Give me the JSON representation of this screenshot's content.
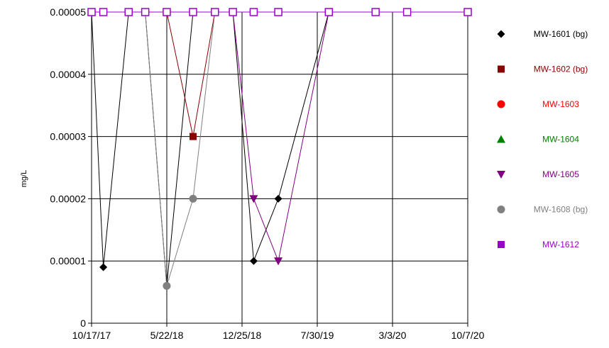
{
  "chart_data": {
    "type": "line",
    "title": "",
    "ylabel": "mg/L",
    "xlabel": "",
    "x_ticks": [
      "10/17/17",
      "5/22/18",
      "12/25/18",
      "7/30/19",
      "3/3/20",
      "10/7/20"
    ],
    "y_ticks": [
      "0",
      "0.00001",
      "0.00002",
      "0.00003",
      "0.00004",
      "0.00005"
    ],
    "ylim": [
      0,
      5e-05
    ],
    "xlim": [
      "2017-10-17",
      "2020-10-07"
    ],
    "grid": true,
    "legend_position": "right",
    "series": [
      {
        "name": "MW-1601 (bg)",
        "color": "#000000",
        "marker": "diamond",
        "points": [
          [
            "2017-10-17",
            5e-05
          ],
          [
            "2017-11-20",
            9e-06
          ],
          [
            "2018-02-01",
            5e-05
          ],
          [
            "2018-03-21",
            5e-05
          ],
          [
            "2018-05-22",
            6e-06
          ],
          [
            "2018-08-06",
            5e-05
          ],
          [
            "2018-10-08",
            5e-05
          ],
          [
            "2018-11-29",
            5e-05
          ],
          [
            "2019-01-28",
            1e-05
          ],
          [
            "2019-04-09",
            2e-05
          ],
          [
            "2019-09-02",
            5e-05
          ],
          [
            "2020-10-07",
            5e-05
          ]
        ]
      },
      {
        "name": "MW-1602 (bg)",
        "color": "#8b0000",
        "marker": "square",
        "points": [
          [
            "2018-05-22",
            5e-05
          ],
          [
            "2018-08-06",
            3e-05
          ],
          [
            "2018-10-08",
            5e-05
          ]
        ]
      },
      {
        "name": "MW-1603",
        "color": "#ff0000",
        "marker": "circle",
        "points": []
      },
      {
        "name": "MW-1604",
        "color": "#008000",
        "marker": "triangle-up",
        "points": [
          [
            "2017-10-17",
            5e-05
          ]
        ]
      },
      {
        "name": "MW-1605",
        "color": "#800080",
        "marker": "triangle-down",
        "points": [
          [
            "2018-11-29",
            5e-05
          ],
          [
            "2019-01-28",
            2e-05
          ],
          [
            "2019-04-09",
            1e-05
          ],
          [
            "2019-09-02",
            5e-05
          ]
        ]
      },
      {
        "name": "MW-1608 (bg)",
        "color": "#808080",
        "marker": "circle",
        "points": [
          [
            "2018-03-21",
            5e-05
          ],
          [
            "2018-05-22",
            6e-06
          ],
          [
            "2018-08-06",
            2e-05
          ],
          [
            "2018-10-08",
            5e-05
          ]
        ]
      },
      {
        "name": "MW-1612",
        "color": "#9900cc",
        "marker": "square-open",
        "points": [
          [
            "2017-10-17",
            5e-05
          ],
          [
            "2017-11-20",
            5e-05
          ],
          [
            "2018-02-01",
            5e-05
          ],
          [
            "2018-03-21",
            5e-05
          ],
          [
            "2018-05-22",
            5e-05
          ],
          [
            "2018-08-06",
            5e-05
          ],
          [
            "2018-10-08",
            5e-05
          ],
          [
            "2018-11-29",
            5e-05
          ],
          [
            "2019-01-28",
            5e-05
          ],
          [
            "2019-04-09",
            5e-05
          ],
          [
            "2019-09-02",
            5e-05
          ],
          [
            "2020-01-15",
            5e-05
          ],
          [
            "2020-04-15",
            5e-05
          ],
          [
            "2020-10-07",
            5e-05
          ]
        ]
      }
    ]
  }
}
